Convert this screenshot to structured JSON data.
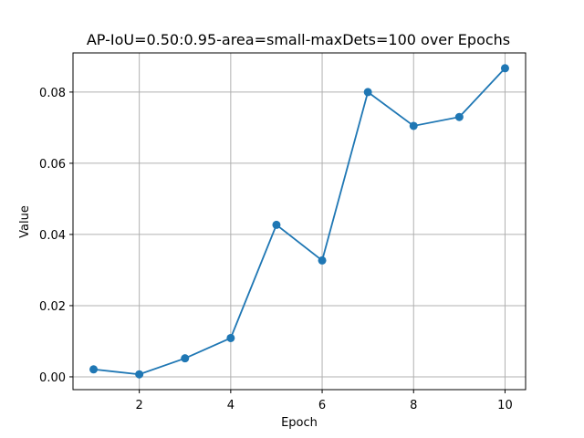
{
  "chart_data": {
    "type": "line",
    "title": "AP-IoU=0.50:0.95-area=small-maxDets=100 over Epochs",
    "xlabel": "Epoch",
    "ylabel": "Value",
    "x": [
      1,
      2,
      3,
      4,
      5,
      6,
      7,
      8,
      9,
      10
    ],
    "series": [
      {
        "values": [
          0.0021,
          0.0007,
          0.0052,
          0.0109,
          0.0427,
          0.0327,
          0.08,
          0.0705,
          0.073,
          0.0867
        ]
      }
    ],
    "xlim": [
      0.55,
      10.45
    ],
    "ylim": [
      -0.0036,
      0.091
    ],
    "xticks": [
      2,
      4,
      6,
      8,
      10
    ],
    "xtick_labels": [
      "2",
      "4",
      "6",
      "8",
      "10"
    ],
    "yticks": [
      0.0,
      0.02,
      0.04,
      0.06,
      0.08
    ],
    "ytick_labels": [
      "0.00",
      "0.02",
      "0.04",
      "0.06",
      "0.08"
    ],
    "grid": true,
    "line_color": "#1f77b4",
    "grid_color": "#b0b0b0"
  }
}
